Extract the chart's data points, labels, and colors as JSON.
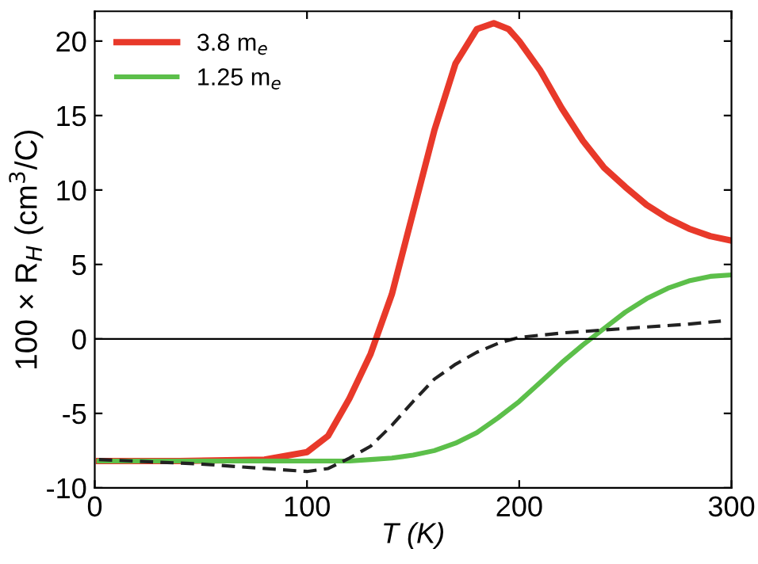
{
  "chart_data": {
    "type": "line",
    "xlabel": "T (K)",
    "ylabel": "100 × R$_{H}$ (cm$^{3}$/C)",
    "xlim": [
      0,
      300
    ],
    "ylim": [
      -10,
      22
    ],
    "xticks": [
      0,
      100,
      200,
      300
    ],
    "yticks": [
      -10,
      -5,
      0,
      5,
      10,
      15,
      20
    ],
    "grid": false,
    "legend": "top left",
    "line_style": "solid",
    "ref_lines": [
      {
        "axis": "y",
        "value": 0,
        "color": "#000000"
      }
    ],
    "series": [
      {
        "name": "3.8 m$_{e}$",
        "color": "#e8392a",
        "x": [
          2,
          40,
          80,
          100,
          110,
          120,
          130,
          140,
          150,
          160,
          170,
          180,
          188,
          195,
          200,
          210,
          220,
          230,
          240,
          250,
          260,
          270,
          280,
          290,
          300
        ],
        "values": [
          -8.2,
          -8.2,
          -8.1,
          -7.6,
          -6.5,
          -4,
          -1,
          3,
          8.5,
          14,
          18.5,
          20.8,
          21.2,
          20.8,
          20,
          18,
          15.5,
          13.3,
          11.5,
          10.2,
          9,
          8.1,
          7.4,
          6.9,
          6.6
        ]
      },
      {
        "name": "1.25 m$_{e}$",
        "color": "#5cbf4a",
        "x": [
          2,
          60,
          120,
          130,
          140,
          150,
          160,
          170,
          180,
          190,
          200,
          210,
          220,
          230,
          240,
          250,
          260,
          270,
          280,
          290,
          300
        ],
        "values": [
          -8.2,
          -8.2,
          -8.2,
          -8.1,
          -8,
          -7.8,
          -7.5,
          -7,
          -6.3,
          -5.3,
          -4.2,
          -2.9,
          -1.6,
          -0.4,
          0.7,
          1.8,
          2.7,
          3.4,
          3.9,
          4.2,
          4.3
        ]
      },
      {
        "color": "#222222",
        "line_style": "dashed",
        "x": [
          2,
          50,
          80,
          100,
          110,
          120,
          130,
          140,
          150,
          160,
          170,
          180,
          190,
          200,
          220,
          240,
          260,
          280,
          295
        ],
        "values": [
          -8.1,
          -8.4,
          -8.7,
          -8.9,
          -8.7,
          -8,
          -7.2,
          -5.8,
          -4.2,
          -2.7,
          -1.7,
          -0.9,
          -0.3,
          0.1,
          0.4,
          0.6,
          0.8,
          1,
          1.2
        ]
      }
    ]
  }
}
